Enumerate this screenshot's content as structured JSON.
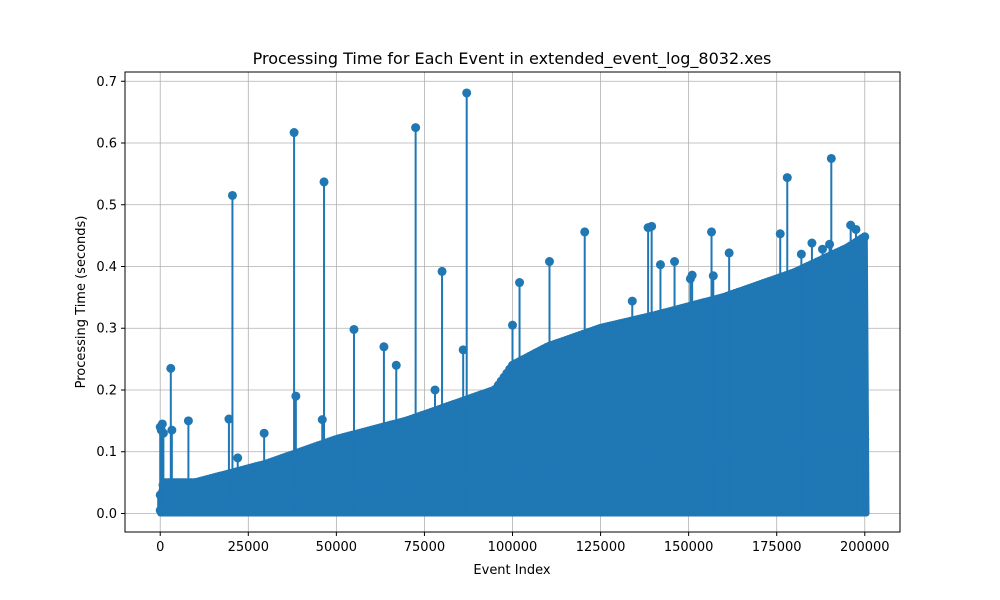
{
  "chart_data": {
    "type": "stem",
    "title": "Processing Time for Each Event in extended_event_log_8032.xes",
    "xlabel": "Event Index",
    "ylabel": "Processing Time (seconds)",
    "xlim": [
      -10000,
      210000
    ],
    "ylim": [
      -0.03,
      0.715
    ],
    "grid": true,
    "color": "#1f77b4",
    "xticks": [
      0,
      25000,
      50000,
      75000,
      100000,
      125000,
      150000,
      175000,
      200000
    ],
    "xtick_labels": [
      "0",
      "25000",
      "50000",
      "75000",
      "100000",
      "125000",
      "150000",
      "175000",
      "200000"
    ],
    "yticks": [
      0.0,
      0.1,
      0.2,
      0.3,
      0.4,
      0.5,
      0.6,
      0.7
    ],
    "ytick_labels": [
      "0.0",
      "0.1",
      "0.2",
      "0.3",
      "0.4",
      "0.5",
      "0.6",
      "0.7"
    ],
    "envelope": {
      "x": [
        0,
        1000,
        10000,
        30000,
        50000,
        70000,
        85000,
        95000,
        100000,
        110000,
        125000,
        140000,
        160000,
        180000,
        195000,
        200500
      ],
      "upper": [
        0.03,
        0.05,
        0.05,
        0.08,
        0.12,
        0.15,
        0.18,
        0.2,
        0.24,
        0.27,
        0.3,
        0.32,
        0.35,
        0.39,
        0.43,
        0.45
      ],
      "lower": [
        0.005,
        0.005,
        0.01,
        0.02,
        0.03,
        0.045,
        0.055,
        0.06,
        0.065,
        0.075,
        0.085,
        0.095,
        0.1,
        0.11,
        0.115,
        0.12
      ]
    },
    "outliers": {
      "x": [
        0,
        300,
        600,
        900,
        3000,
        3300,
        8000,
        19500,
        20500,
        22000,
        29500,
        38000,
        38500,
        46000,
        46500,
        55000,
        63500,
        67000,
        72500,
        78000,
        80000,
        86000,
        87000,
        100000,
        102000,
        110500,
        120500,
        134000,
        138500,
        139500,
        142000,
        146000,
        150500,
        151000,
        156500,
        157000,
        161500,
        176000,
        178000,
        182000,
        185000,
        188000,
        190000,
        190500,
        196000,
        197500
      ],
      "y": [
        0.14,
        0.135,
        0.145,
        0.13,
        0.235,
        0.135,
        0.15,
        0.153,
        0.515,
        0.09,
        0.13,
        0.617,
        0.19,
        0.152,
        0.537,
        0.298,
        0.27,
        0.24,
        0.625,
        0.2,
        0.392,
        0.265,
        0.681,
        0.305,
        0.374,
        0.408,
        0.456,
        0.344,
        0.463,
        0.465,
        0.403,
        0.408,
        0.38,
        0.386,
        0.456,
        0.385,
        0.422,
        0.453,
        0.544,
        0.42,
        0.438,
        0.428,
        0.436,
        0.575,
        0.467,
        0.46
      ]
    }
  }
}
